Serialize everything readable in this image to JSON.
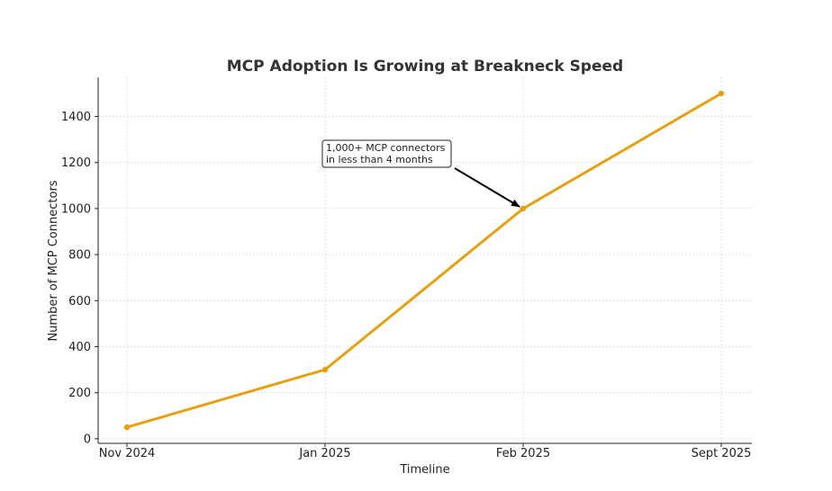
{
  "chart_data": {
    "type": "line",
    "title": "MCP Adoption Is Growing at Breakneck Speed",
    "xlabel": "Timeline",
    "ylabel": "Number of MCP Connectors",
    "categories": [
      "Nov 2024",
      "Jan 2025",
      "Feb 2025",
      "Sept 2025"
    ],
    "series": [
      {
        "name": "MCP Connectors",
        "values": [
          50,
          300,
          1000,
          1500
        ],
        "color": "#e6a012"
      }
    ],
    "ylim": [
      -20,
      1570
    ],
    "yticks": [
      0,
      200,
      400,
      600,
      800,
      1000,
      1200,
      1400
    ],
    "grid": true,
    "annotation": {
      "lines": [
        "1,000+ MCP connectors",
        "in less than 4 months"
      ],
      "target_category": "Feb 2025",
      "target_value": 1000
    }
  }
}
